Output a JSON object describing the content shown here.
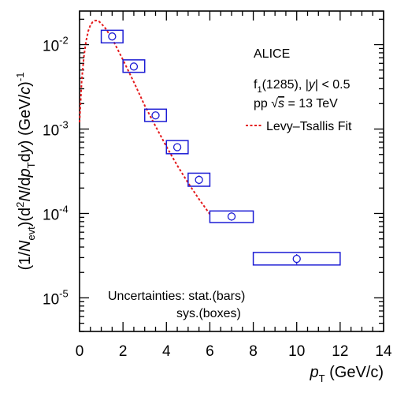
{
  "chart_data": {
    "type": "scatter",
    "log_y": true,
    "xlim": [
      0,
      14
    ],
    "ylim": [
      4e-06,
      0.025
    ],
    "x_ticks": [
      "0",
      "2",
      "4",
      "6",
      "8",
      "10",
      "12",
      "14"
    ],
    "y_ticks": [
      {
        "mantissa": "10",
        "exp": "-2",
        "value": 0.01
      },
      {
        "mantissa": "10",
        "exp": "-3",
        "value": 0.001
      },
      {
        "mantissa": "10",
        "exp": "-4",
        "value": 0.0001
      },
      {
        "mantissa": "10",
        "exp": "-5",
        "value": 1e-05
      }
    ],
    "xlabel": {
      "var": "p",
      "sub": "T",
      "unit": " (GeV/c)"
    },
    "ylabel": "(1/N_evt)(d²N/dp_T dy) (GeV/c)⁻¹",
    "points": [
      {
        "x": 1.5,
        "y": 0.0125,
        "xlow": 1.0,
        "xhigh": 2.0,
        "sys_low": 0.0105,
        "sys_high": 0.0148,
        "stat_low": 0.0114,
        "stat_high": 0.0136
      },
      {
        "x": 2.5,
        "y": 0.0055,
        "xlow": 2.0,
        "xhigh": 3.0,
        "sys_low": 0.0047,
        "sys_high": 0.0066,
        "stat_low": 0.0051,
        "stat_high": 0.0059
      },
      {
        "x": 3.5,
        "y": 0.00145,
        "xlow": 3.0,
        "xhigh": 4.0,
        "sys_low": 0.00123,
        "sys_high": 0.00172,
        "stat_low": 0.00131,
        "stat_high": 0.0016
      },
      {
        "x": 4.5,
        "y": 0.00061,
        "xlow": 4.0,
        "xhigh": 5.0,
        "sys_low": 0.00051,
        "sys_high": 0.00073,
        "stat_low": 0.00055,
        "stat_high": 0.00068
      },
      {
        "x": 5.5,
        "y": 0.00025,
        "xlow": 5.0,
        "xhigh": 6.0,
        "sys_low": 0.00021,
        "sys_high": 0.0003,
        "stat_low": 0.000222,
        "stat_high": 0.000282
      },
      {
        "x": 7.0,
        "y": 9.2e-05,
        "xlow": 6.0,
        "xhigh": 8.0,
        "sys_low": 7.8e-05,
        "sys_high": 0.000107,
        "stat_low": 8.2e-05,
        "stat_high": 0.000103
      },
      {
        "x": 10.0,
        "y": 2.9e-05,
        "xlow": 8.0,
        "xhigh": 12.0,
        "sys_low": 2.45e-05,
        "sys_high": 3.45e-05,
        "stat_low": 2.5e-05,
        "stat_high": 3.3e-05
      }
    ],
    "fit": {
      "name": "Levy–Tsallis Fit",
      "color": "#e41a1c",
      "x": [
        0.0,
        0.1,
        0.2,
        0.3,
        0.4,
        0.5,
        0.6,
        0.7,
        0.8,
        0.9,
        1.0,
        1.2,
        1.5,
        2.0,
        2.5,
        3.0,
        3.5,
        4.0,
        4.5,
        5.0,
        5.5,
        6.0
      ],
      "y": [
        0.0012,
        0.0038,
        0.0072,
        0.011,
        0.0145,
        0.017,
        0.0185,
        0.0192,
        0.0193,
        0.0188,
        0.0178,
        0.0155,
        0.0118,
        0.0066,
        0.0036,
        0.0019,
        0.00108,
        0.00062,
        0.00037,
        0.00023,
        0.000148,
        9.8e-05
      ]
    },
    "marker_color": "#1c1cd4",
    "annotations": {
      "experiment": "ALICE",
      "particle_pre": "f",
      "particle_sub": "1",
      "particle_post": "(1285), |",
      "rap_var": "y",
      "rap_post": "| < 0.5",
      "system_pre": "pp ",
      "sqrt_symbol": "√",
      "sqrt_var": "s",
      "system_post": " = 13 TeV",
      "uncert_line1": "Uncertainties: stat.(bars)",
      "uncert_line2": "sys.(boxes)"
    }
  }
}
